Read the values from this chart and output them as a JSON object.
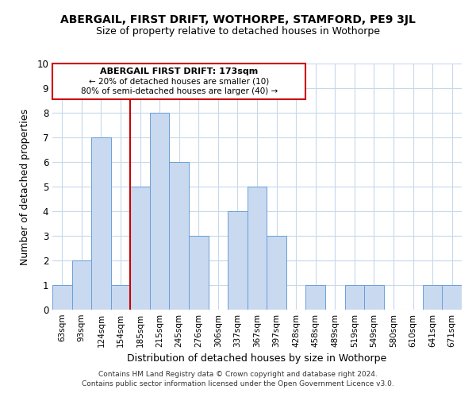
{
  "title": "ABERGAIL, FIRST DRIFT, WOTHORPE, STAMFORD, PE9 3JL",
  "subtitle": "Size of property relative to detached houses in Wothorpe",
  "xlabel": "Distribution of detached houses by size in Wothorpe",
  "ylabel": "Number of detached properties",
  "categories": [
    "63sqm",
    "93sqm",
    "124sqm",
    "154sqm",
    "185sqm",
    "215sqm",
    "245sqm",
    "276sqm",
    "306sqm",
    "337sqm",
    "367sqm",
    "397sqm",
    "428sqm",
    "458sqm",
    "489sqm",
    "519sqm",
    "549sqm",
    "580sqm",
    "610sqm",
    "641sqm",
    "671sqm"
  ],
  "values": [
    1,
    2,
    7,
    1,
    5,
    8,
    6,
    3,
    0,
    4,
    5,
    3,
    0,
    1,
    0,
    1,
    1,
    0,
    0,
    1,
    1
  ],
  "bar_color": "#c9d9f0",
  "bar_edge_color": "#6a9fd8",
  "vline_color": "#cc0000",
  "annotation_title": "ABERGAIL FIRST DRIFT: 173sqm",
  "annotation_line1": "← 20% of detached houses are smaller (10)",
  "annotation_line2": "80% of semi-detached houses are larger (40) →",
  "annotation_box_color": "#ffffff",
  "annotation_box_edge": "#cc0000",
  "ylim": [
    0,
    10
  ],
  "yticks": [
    0,
    1,
    2,
    3,
    4,
    5,
    6,
    7,
    8,
    9,
    10
  ],
  "footer1": "Contains HM Land Registry data © Crown copyright and database right 2024.",
  "footer2": "Contains public sector information licensed under the Open Government Licence v3.0.",
  "background_color": "#ffffff",
  "grid_color": "#c8d8ec",
  "title_fontsize": 10,
  "subtitle_fontsize": 9
}
